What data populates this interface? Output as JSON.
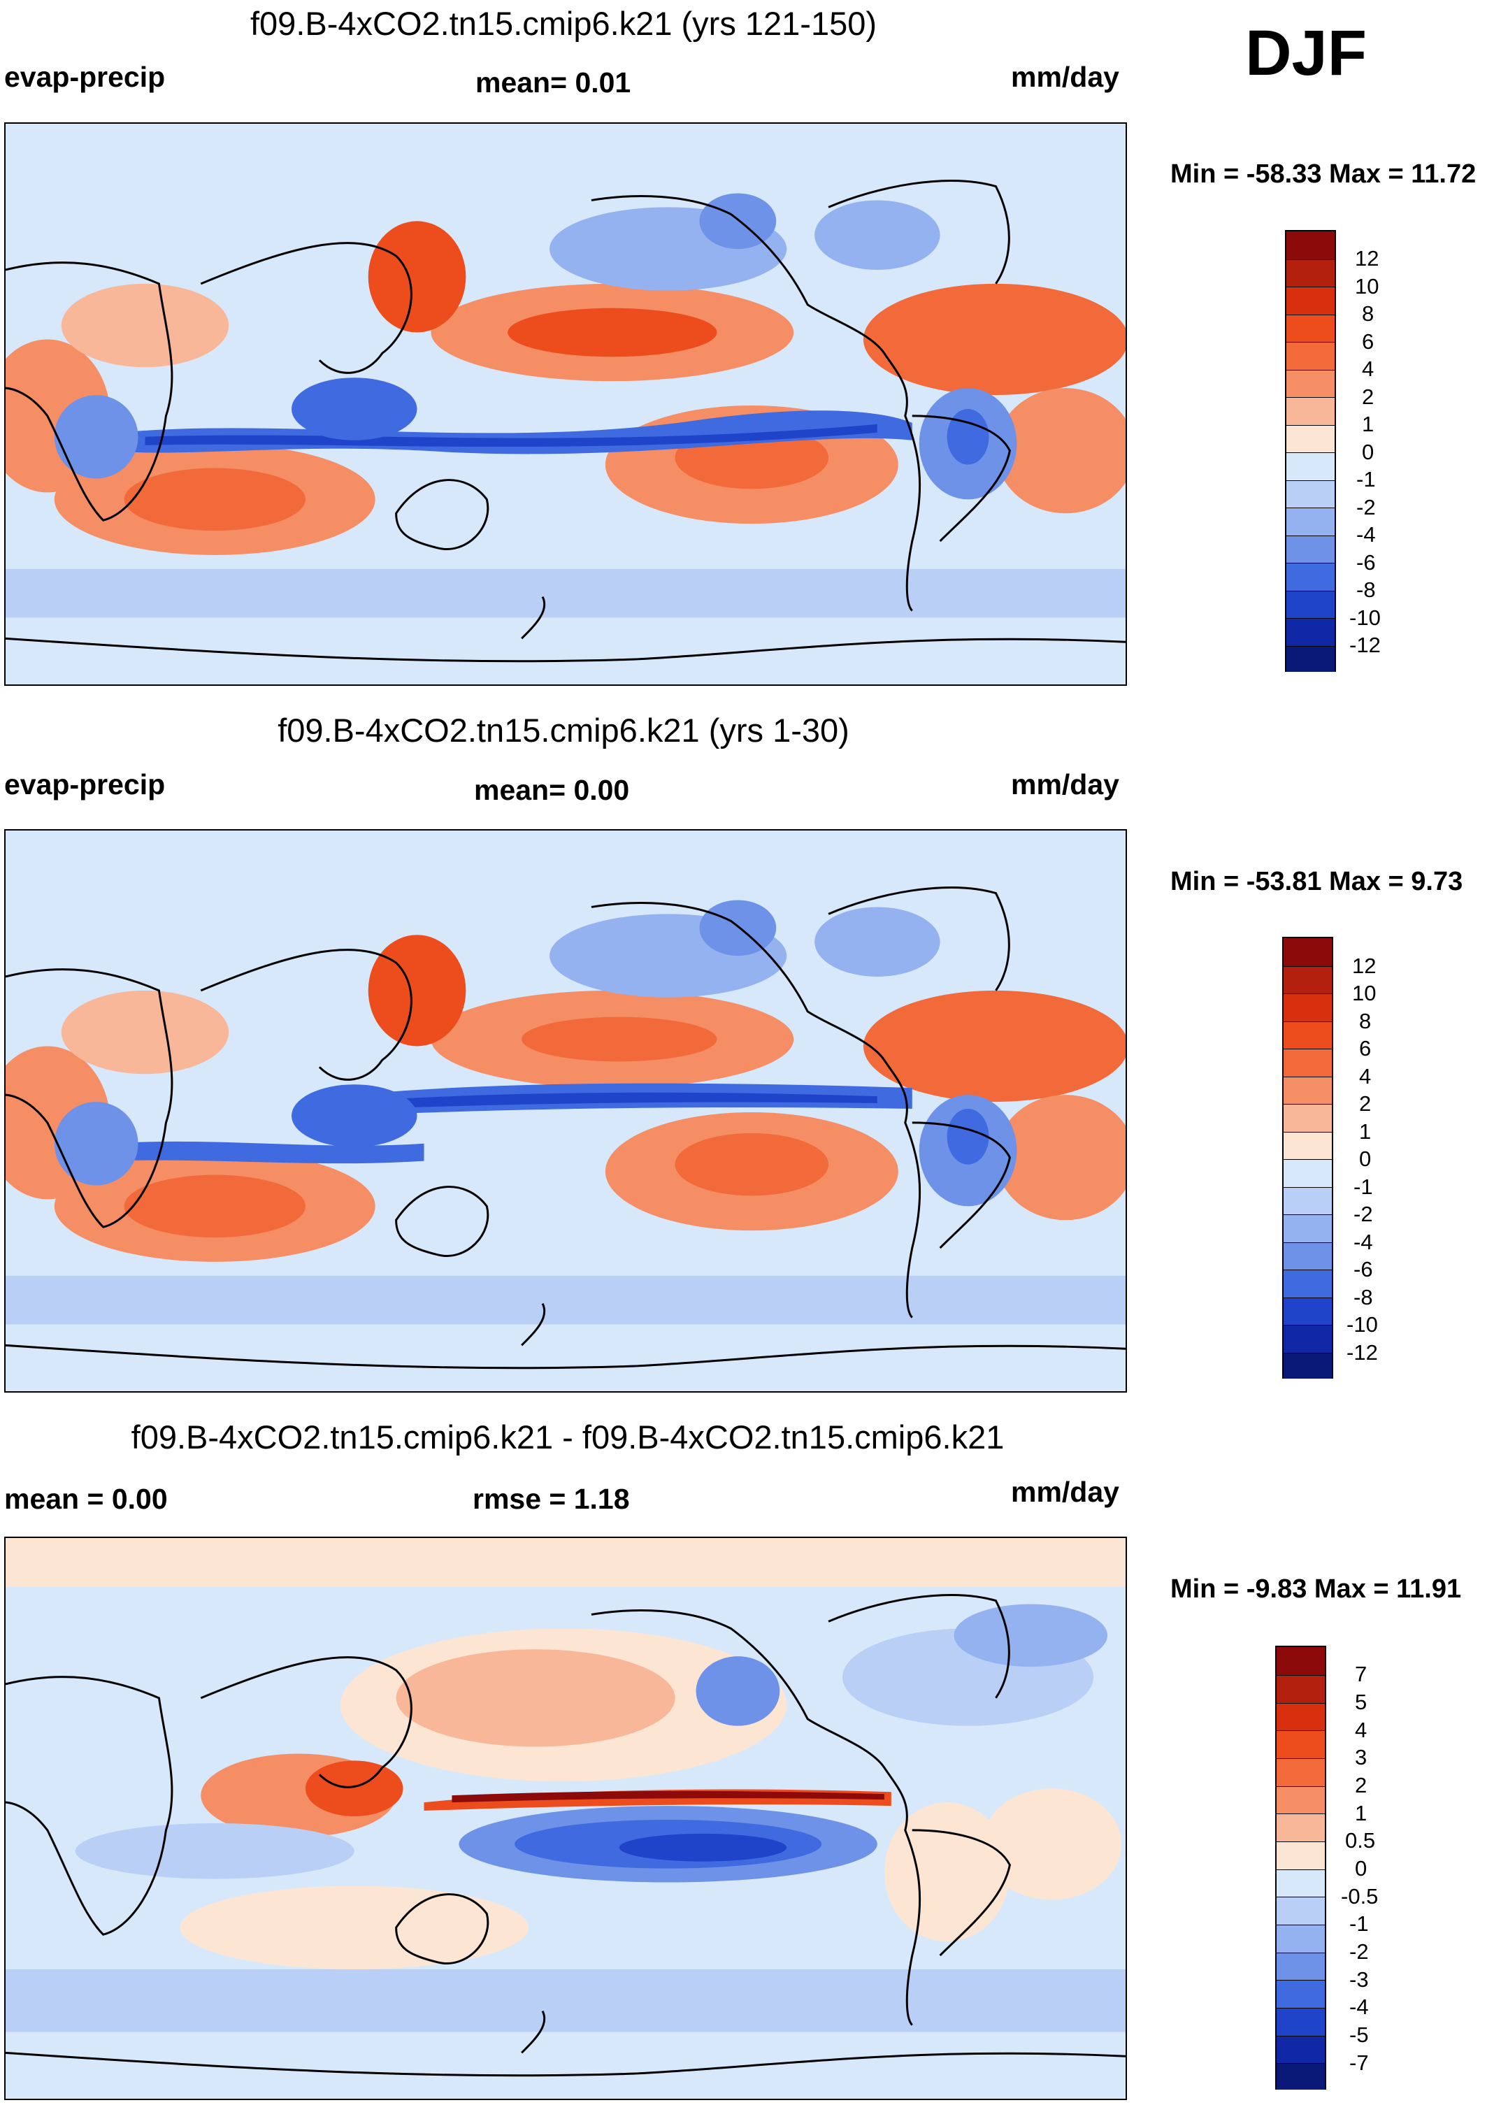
{
  "season": "DJF",
  "panels": [
    {
      "title": "f09.B-4xCO2.tn15.cmip6.k21 (yrs 121-150)",
      "left_label": "evap-precip",
      "center_label": "mean=   0.01",
      "right_label": "mm/day",
      "minmax": "Min = -58.33 Max =  11.72",
      "colorbar_labels": [
        "12",
        "10",
        "8",
        "6",
        "4",
        "2",
        "1",
        "0",
        "-1",
        "-2",
        "-4",
        "-6",
        "-8",
        "-10",
        "-12"
      ],
      "map_caption": "evap-precip field, yrs 121-150"
    },
    {
      "title": "f09.B-4xCO2.tn15.cmip6.k21 (yrs 1-30)",
      "left_label": "evap-precip",
      "center_label": "mean=   0.00",
      "right_label": "mm/day",
      "minmax": "Min = -53.81 Max =   9.73",
      "colorbar_labels": [
        "12",
        "10",
        "8",
        "6",
        "4",
        "2",
        "1",
        "0",
        "-1",
        "-2",
        "-4",
        "-6",
        "-8",
        "-10",
        "-12"
      ],
      "map_caption": "evap-precip field, yrs 1-30"
    },
    {
      "title": "f09.B-4xCO2.tn15.cmip6.k21 - f09.B-4xCO2.tn15.cmip6.k21",
      "left_label": "mean =   0.00",
      "center_label": "rmse =   1.18",
      "right_label": "mm/day",
      "minmax": "Min =  -9.83 Max =  11.91",
      "colorbar_labels": [
        "7",
        "5",
        "4",
        "3",
        "2",
        "1",
        "0.5",
        "0",
        "-0.5",
        "-1",
        "-2",
        "-3",
        "-4",
        "-5",
        "-7"
      ],
      "map_caption": "difference field"
    }
  ],
  "colors": {
    "ramp_top_to_bottom": [
      "#8c0a0a",
      "#b3200e",
      "#d8300f",
      "#ed4d1c",
      "#f26a3a",
      "#f58d65",
      "#f9b79a",
      "#fde5d4",
      "#d8e8fb",
      "#b9cff5",
      "#93b2ef",
      "#6d92e8",
      "#3f6ae0",
      "#1f44c9",
      "#1028a6",
      "#0a1878"
    ],
    "ocean_base": "#d8e8fb",
    "coast": "#000000"
  }
}
